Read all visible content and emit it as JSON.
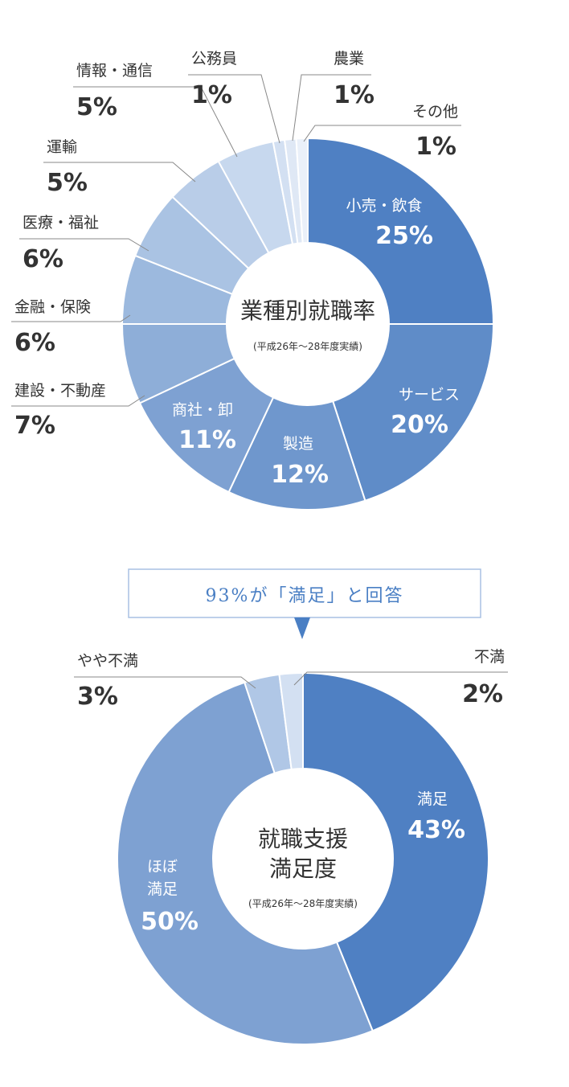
{
  "chart_data": [
    {
      "type": "pie",
      "title": "業種別就職率",
      "subtitle": "(平成26年〜28年度実績)",
      "slices": [
        {
          "label": "小売・飲食",
          "value": 25,
          "value_label": "25%",
          "color": "#4f80c3"
        },
        {
          "label": "サービス",
          "value": 20,
          "value_label": "20%",
          "color": "#5f8cc8"
        },
        {
          "label": "製造",
          "value": 12,
          "value_label": "12%",
          "color": "#6f97cd"
        },
        {
          "label": "商社・卸",
          "value": 11,
          "value_label": "11%",
          "color": "#7ea1d2"
        },
        {
          "label": "建設・不動産",
          "value": 7,
          "value_label": "7%",
          "color": "#8eaed8"
        },
        {
          "label": "金融・保険",
          "value": 6,
          "value_label": "6%",
          "color": "#9cb9de"
        },
        {
          "label": "医療・福祉",
          "value": 6,
          "value_label": "6%",
          "color": "#aac3e3"
        },
        {
          "label": "運輸",
          "value": 5,
          "value_label": "5%",
          "color": "#b9cde8"
        },
        {
          "label": "情報・通信",
          "value": 5,
          "value_label": "5%",
          "color": "#c7d8ee"
        },
        {
          "label": "公務員",
          "value": 1,
          "value_label": "1%",
          "color": "#d3e0f2"
        },
        {
          "label": "農業",
          "value": 1,
          "value_label": "1%",
          "color": "#dfe8f5"
        },
        {
          "label": "その他",
          "value": 1,
          "value_label": "1%",
          "color": "#eaf0f9"
        }
      ]
    },
    {
      "type": "pie",
      "title_lines": [
        "就職支援",
        "満足度"
      ],
      "subtitle": "(平成26年〜28年度実績)",
      "callout": "93%が「満足」と回答",
      "slices": [
        {
          "label": "満足",
          "value": 43,
          "value_label": "43%",
          "color": "#4f80c3"
        },
        {
          "label_lines": [
            "ほぼ",
            "満足"
          ],
          "value": 50,
          "value_label": "50%",
          "color": "#7ea1d2"
        },
        {
          "label": "やや不満",
          "value": 3,
          "value_label": "3%",
          "color": "#b0c7e6"
        },
        {
          "label": "不満",
          "value": 2,
          "value_label": "2%",
          "color": "#d3e0f2"
        }
      ]
    }
  ]
}
